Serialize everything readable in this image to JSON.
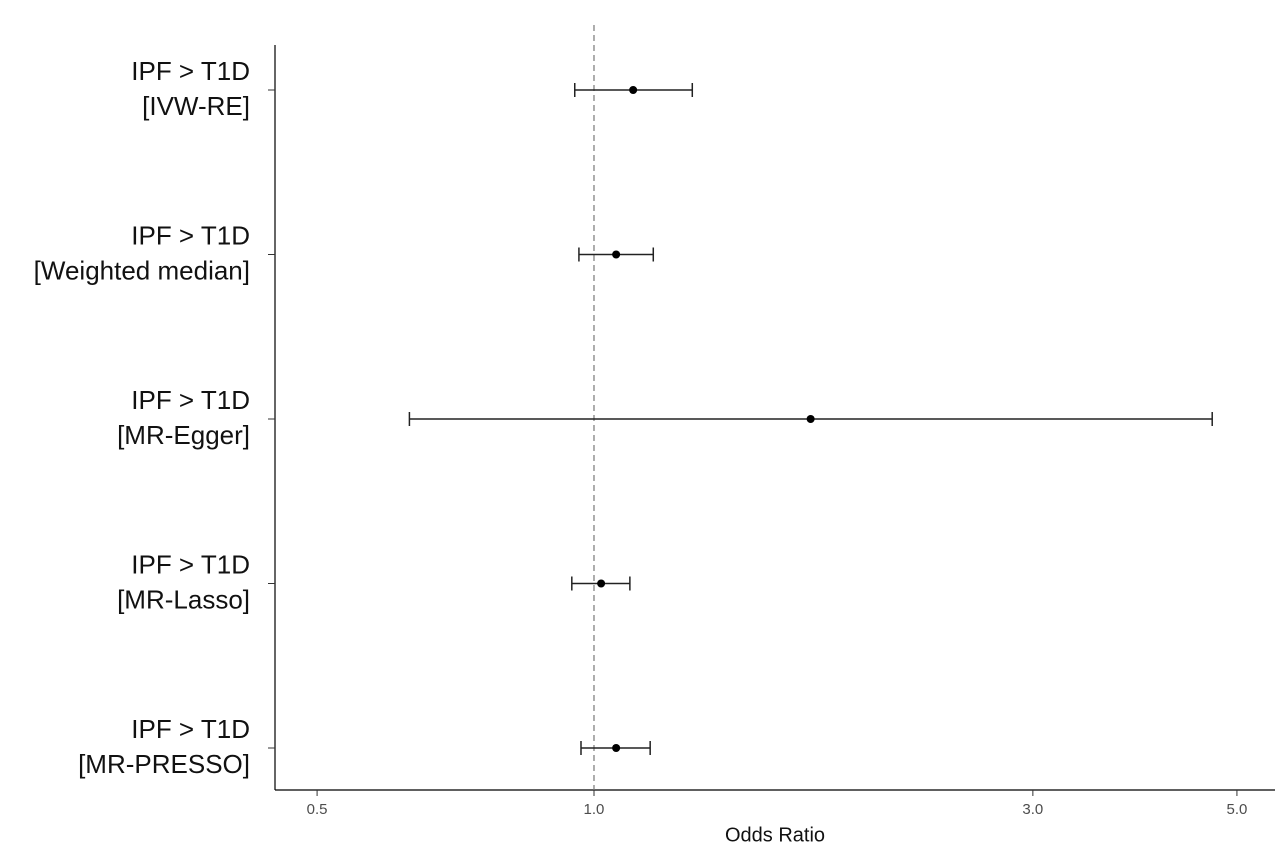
{
  "chart_data": {
    "type": "forest",
    "x_label": "Odds Ratio",
    "log_x": true,
    "categories": [
      [
        "IPF > T1D",
        "[IVW-RE]"
      ],
      [
        "IPF > T1D",
        "[Weighted median]"
      ],
      [
        "IPF > T1D",
        "[MR-Egger]"
      ],
      [
        "IPF > T1D",
        "[MR-Lasso]"
      ],
      [
        "IPF > T1D",
        "[MR-PRESSO]"
      ]
    ],
    "values": [
      1.103,
      1.057,
      1.72,
      1.018,
      1.057
    ],
    "lower": [
      0.953,
      0.963,
      0.63,
      0.946,
      0.968
    ],
    "upper": [
      1.279,
      1.16,
      4.7,
      1.094,
      1.151
    ],
    "color": "#000000",
    "reference_line": 1,
    "xlim": [
      0.45,
      5.5
    ],
    "xticks": [
      0.5,
      {
        "value": 1,
        "label": "1.0"
      },
      {
        "value": 3,
        "label": "3.0"
      },
      {
        "value": 5,
        "label": "5.0"
      }
    ]
  }
}
